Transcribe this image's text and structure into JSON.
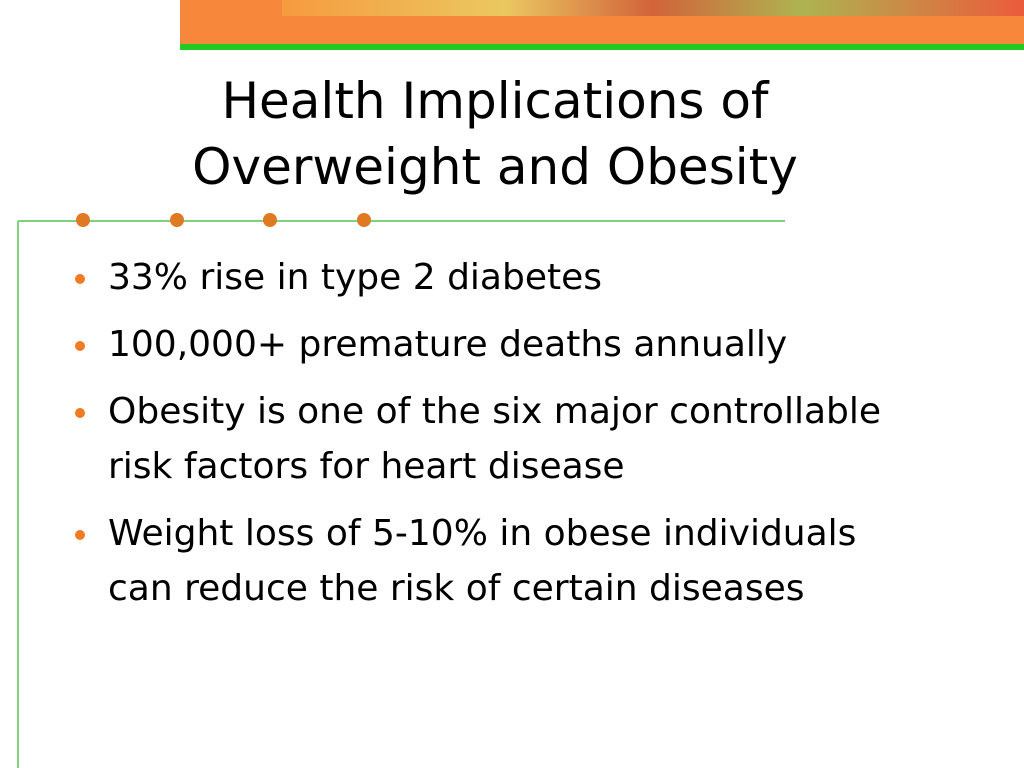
{
  "slide": {
    "title_lines": [
      "Health Implications of",
      "Overweight and Obesity"
    ],
    "bullets": [
      [
        "33% rise in type 2 diabetes"
      ],
      [
        "100,000+ premature deaths annually"
      ],
      [
        "Obesity is one of the six major controllable",
        "risk factors for heart disease"
      ],
      [
        "Weight loss of 5-10% in obese individuals",
        "can reduce the risk of certain diseases"
      ]
    ]
  }
}
